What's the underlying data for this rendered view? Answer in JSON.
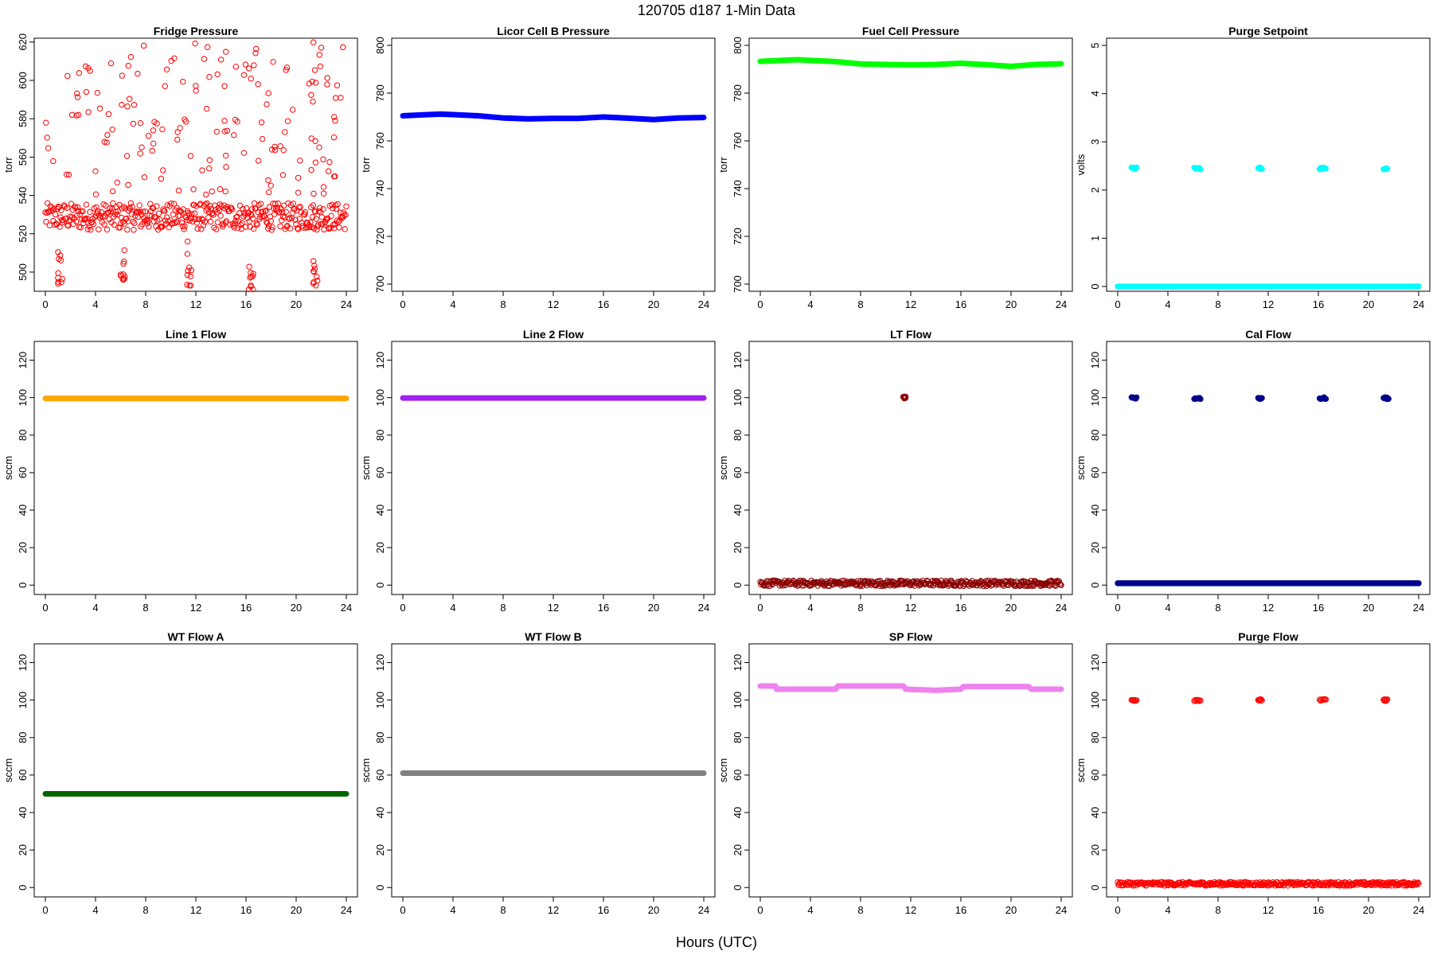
{
  "figure": {
    "title": "120705   d187   1-Min Data",
    "xlabel": "Hours (UTC)"
  },
  "chart_data": [
    {
      "type": "scatter",
      "title": "Fridge Pressure",
      "ylabel": "torr",
      "xlim": [
        0,
        24
      ],
      "ylim": [
        490,
        622
      ],
      "xticks": [
        0,
        4,
        8,
        12,
        16,
        20,
        24
      ],
      "yticks": [
        500,
        520,
        540,
        560,
        580,
        600,
        620
      ],
      "color": "#ff0000",
      "marker": "hollow",
      "baseline": {
        "value": 529,
        "spread": 14
      },
      "scatter_upper": {
        "min": 540,
        "max": 620
      },
      "dips": [
        {
          "x": 1.2,
          "y": 494
        },
        {
          "x": 6.2,
          "y": 496
        },
        {
          "x": 11.5,
          "y": 493
        },
        {
          "x": 16.4,
          "y": 491
        },
        {
          "x": 21.5,
          "y": 493
        }
      ]
    },
    {
      "type": "line",
      "title": "Licor Cell B Pressure",
      "ylabel": "torr",
      "xlim": [
        0,
        24
      ],
      "ylim": [
        697,
        803
      ],
      "xticks": [
        0,
        4,
        8,
        12,
        16,
        20,
        24
      ],
      "yticks": [
        700,
        720,
        740,
        760,
        780,
        800
      ],
      "color": "#0000ff",
      "series": [
        {
          "x": [
            0,
            2,
            3,
            4,
            6,
            8,
            10,
            12,
            14,
            16,
            18,
            20,
            22,
            24
          ],
          "y": [
            770.5,
            771,
            771.2,
            771,
            770.5,
            769.6,
            769.2,
            769.4,
            769.4,
            770,
            769.5,
            768.9,
            769.6,
            769.8
          ]
        }
      ]
    },
    {
      "type": "line",
      "title": "Fuel Cell Pressure",
      "ylabel": "torr",
      "xlim": [
        0,
        24
      ],
      "ylim": [
        697,
        803
      ],
      "xticks": [
        0,
        4,
        8,
        12,
        16,
        20,
        24
      ],
      "yticks": [
        700,
        720,
        740,
        760,
        780,
        800
      ],
      "color": "#00ff00",
      "series": [
        {
          "x": [
            0,
            2,
            3,
            4,
            6,
            8,
            10,
            12,
            14,
            16,
            18,
            20,
            22,
            24
          ],
          "y": [
            793.3,
            793.8,
            794,
            793.7,
            793.2,
            792.2,
            792,
            791.8,
            792,
            792.5,
            791.9,
            791.2,
            792,
            792.3
          ]
        }
      ]
    },
    {
      "type": "scatter",
      "title": "Purge Setpoint",
      "ylabel": "volts",
      "xlim": [
        0,
        24
      ],
      "ylim": [
        -0.1,
        5.15
      ],
      "xticks": [
        0,
        4,
        8,
        12,
        16,
        20,
        24
      ],
      "yticks": [
        0,
        1,
        2,
        3,
        4,
        5
      ],
      "color": "#00ffff",
      "marker": "filled",
      "baseline": {
        "value": 0
      },
      "pulses": [
        {
          "x": [
            1.1,
            1.5
          ],
          "y": 2.45
        },
        {
          "x": 6.1,
          "y": 2.45,
          "x2": 6.6
        },
        {
          "x": 11.2,
          "x2": 11.5,
          "y": 2.45
        },
        {
          "x": 16.1,
          "x2": 16.6,
          "y": 2.45
        },
        {
          "x": 21.2,
          "x2": 21.5,
          "y": 2.45
        }
      ]
    },
    {
      "type": "line",
      "title": "Line 1 Flow",
      "ylabel": "sccm",
      "xlim": [
        0,
        24
      ],
      "ylim": [
        -5,
        130
      ],
      "xticks": [
        0,
        4,
        8,
        12,
        16,
        20,
        24
      ],
      "yticks": [
        0,
        20,
        40,
        60,
        80,
        100,
        120
      ],
      "color": "#ffa500",
      "series": [
        {
          "x": [
            0,
            24
          ],
          "y": [
            99.6,
            99.6
          ]
        }
      ]
    },
    {
      "type": "line",
      "title": "Line 2 Flow",
      "ylabel": "sccm",
      "xlim": [
        0,
        24
      ],
      "ylim": [
        -5,
        130
      ],
      "xticks": [
        0,
        4,
        8,
        12,
        16,
        20,
        24
      ],
      "yticks": [
        0,
        20,
        40,
        60,
        80,
        100,
        120
      ],
      "color": "#a020f0",
      "series": [
        {
          "x": [
            0,
            24
          ],
          "y": [
            99.8,
            99.8
          ]
        }
      ]
    },
    {
      "type": "scatter",
      "title": "LT Flow",
      "ylabel": "sccm",
      "xlim": [
        0,
        24
      ],
      "ylim": [
        -5,
        130
      ],
      "xticks": [
        0,
        4,
        8,
        12,
        16,
        20,
        24
      ],
      "yticks": [
        0,
        20,
        40,
        60,
        80,
        100,
        120
      ],
      "color": "#8b0000",
      "marker": "hollow",
      "baseline": {
        "value": 1,
        "spread": 3
      },
      "pulses": [
        {
          "x": 11.4,
          "x2": 11.6,
          "y": 100
        }
      ]
    },
    {
      "type": "scatter",
      "title": "Cal Flow",
      "ylabel": "sccm",
      "xlim": [
        0,
        24
      ],
      "ylim": [
        -5,
        130
      ],
      "xticks": [
        0,
        4,
        8,
        12,
        16,
        20,
        24
      ],
      "yticks": [
        0,
        20,
        40,
        60,
        80,
        100,
        120
      ],
      "color": "#00008b",
      "marker": "filled",
      "baseline": {
        "value": 1
      },
      "pulses": [
        {
          "x": 1.1,
          "x2": 1.5,
          "y": 99.7
        },
        {
          "x": 6.1,
          "x2": 6.6,
          "y": 99.7
        },
        {
          "x": 11.2,
          "x2": 11.5,
          "y": 99.7
        },
        {
          "x": 16.1,
          "x2": 16.6,
          "y": 99.7
        },
        {
          "x": 21.2,
          "x2": 21.6,
          "y": 99.7
        }
      ]
    },
    {
      "type": "line",
      "title": "WT Flow A",
      "ylabel": "sccm",
      "xlim": [
        0,
        24
      ],
      "ylim": [
        -5,
        130
      ],
      "xticks": [
        0,
        4,
        8,
        12,
        16,
        20,
        24
      ],
      "yticks": [
        0,
        20,
        40,
        60,
        80,
        100,
        120
      ],
      "color": "#006400",
      "series": [
        {
          "x": [
            0,
            24
          ],
          "y": [
            50,
            50
          ]
        }
      ]
    },
    {
      "type": "line",
      "title": "WT Flow B",
      "ylabel": "sccm",
      "xlim": [
        0,
        24
      ],
      "ylim": [
        -5,
        130
      ],
      "xticks": [
        0,
        4,
        8,
        12,
        16,
        20,
        24
      ],
      "yticks": [
        0,
        20,
        40,
        60,
        80,
        100,
        120
      ],
      "color": "#808080",
      "series": [
        {
          "x": [
            0,
            24
          ],
          "y": [
            61,
            61
          ]
        }
      ]
    },
    {
      "type": "line",
      "title": "SP Flow",
      "ylabel": "sccm",
      "xlim": [
        0,
        24
      ],
      "ylim": [
        -5,
        130
      ],
      "xticks": [
        0,
        4,
        8,
        12,
        16,
        20,
        24
      ],
      "yticks": [
        0,
        20,
        40,
        60,
        80,
        100,
        120
      ],
      "color": "#ee82ee",
      "series": [
        {
          "x": [
            0,
            1.2,
            1.3,
            6,
            6.2,
            11.4,
            11.6,
            14,
            16,
            16.2,
            21.4,
            21.6,
            24
          ],
          "y": [
            107.5,
            107.5,
            105.8,
            105.8,
            107.5,
            107.5,
            105.8,
            105.2,
            105.8,
            107.2,
            107.2,
            105.8,
            105.8
          ]
        }
      ]
    },
    {
      "type": "scatter",
      "title": "Purge Flow",
      "ylabel": "sccm",
      "xlim": [
        0,
        24
      ],
      "ylim": [
        -5,
        130
      ],
      "xticks": [
        0,
        4,
        8,
        12,
        16,
        20,
        24
      ],
      "yticks": [
        0,
        20,
        40,
        60,
        80,
        100,
        120
      ],
      "color": "#ff0000",
      "marker": "hollow",
      "baseline": {
        "value": 2,
        "spread": 2
      },
      "pulses": [
        {
          "x": 1.1,
          "x2": 1.5,
          "y": 100
        },
        {
          "x": 6.1,
          "x2": 6.6,
          "y": 100
        },
        {
          "x": 11.2,
          "x2": 11.5,
          "y": 100
        },
        {
          "x": 16.1,
          "x2": 16.6,
          "y": 100
        },
        {
          "x": 21.2,
          "x2": 21.5,
          "y": 100
        }
      ]
    }
  ]
}
